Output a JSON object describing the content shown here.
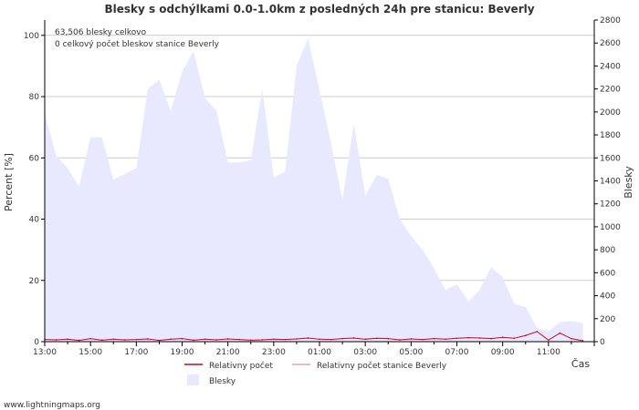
{
  "chart_data": {
    "type": "area",
    "title": "Blesky s odchýlkami 0.0-1.0km z posledných 24h pre stanicu: Beverly",
    "ylabel_left": "Percent   [%]",
    "ylabel_right": "Blesky",
    "xlabel": "Čas",
    "left_axis": {
      "min": 0,
      "max": 105,
      "ticks": [
        "0",
        "20",
        "40",
        "60",
        "80",
        "100"
      ]
    },
    "right_axis": {
      "min": 0,
      "max": 2800,
      "ticks": [
        "0",
        "200",
        "400",
        "600",
        "800",
        "1000",
        "1200",
        "1400",
        "1600",
        "1800",
        "2000",
        "2200",
        "2400",
        "2600",
        "2800"
      ]
    },
    "x_ticks": [
      "13:00",
      "15:00",
      "17:00",
      "19:00",
      "21:00",
      "23:00",
      "01:00",
      "03:00",
      "05:00",
      "07:00",
      "09:00",
      "11:00"
    ],
    "annotation_total": "63,506 blesky celkovo",
    "annotation_station": "0 celkový počet bleskov stanice Beverly",
    "legend": {
      "relative": "Relativny počet",
      "relative_station": "Relativny počet stanice Beverly",
      "strikes": "Blesky"
    },
    "colors": {
      "area_fill": "#e8e8ff",
      "relative_line": "#d0021b",
      "station_line": "#f4a0a8",
      "grid": "#cccccc",
      "axis": "#000000"
    },
    "strikes_series": [
      {
        "hour": 0.0,
        "value": 1990
      },
      {
        "hour": 0.5,
        "value": 1620
      },
      {
        "hour": 1.0,
        "value": 1510
      },
      {
        "hour": 1.5,
        "value": 1350
      },
      {
        "hour": 2.0,
        "value": 1780
      },
      {
        "hour": 2.5,
        "value": 1780
      },
      {
        "hour": 3.0,
        "value": 1410
      },
      {
        "hour": 3.5,
        "value": 1460
      },
      {
        "hour": 4.0,
        "value": 1510
      },
      {
        "hour": 4.5,
        "value": 2200
      },
      {
        "hour": 5.0,
        "value": 2280
      },
      {
        "hour": 5.5,
        "value": 2010
      },
      {
        "hour": 6.0,
        "value": 2350
      },
      {
        "hour": 6.5,
        "value": 2530
      },
      {
        "hour": 7.0,
        "value": 2120
      },
      {
        "hour": 7.5,
        "value": 2010
      },
      {
        "hour": 8.0,
        "value": 1560
      },
      {
        "hour": 8.5,
        "value": 1560
      },
      {
        "hour": 9.0,
        "value": 1580
      },
      {
        "hour": 9.5,
        "value": 2200
      },
      {
        "hour": 10.0,
        "value": 1430
      },
      {
        "hour": 10.5,
        "value": 1480
      },
      {
        "hour": 11.0,
        "value": 2400
      },
      {
        "hour": 11.5,
        "value": 2640
      },
      {
        "hour": 12.0,
        "value": 2190
      },
      {
        "hour": 12.5,
        "value": 1730
      },
      {
        "hour": 13.0,
        "value": 1230
      },
      {
        "hour": 13.5,
        "value": 1900
      },
      {
        "hour": 14.0,
        "value": 1270
      },
      {
        "hour": 14.5,
        "value": 1450
      },
      {
        "hour": 15.0,
        "value": 1420
      },
      {
        "hour": 15.5,
        "value": 1070
      },
      {
        "hour": 16.0,
        "value": 920
      },
      {
        "hour": 16.5,
        "value": 800
      },
      {
        "hour": 17.0,
        "value": 640
      },
      {
        "hour": 17.5,
        "value": 450
      },
      {
        "hour": 18.0,
        "value": 500
      },
      {
        "hour": 18.5,
        "value": 350
      },
      {
        "hour": 19.0,
        "value": 450
      },
      {
        "hour": 19.5,
        "value": 650
      },
      {
        "hour": 20.0,
        "value": 560
      },
      {
        "hour": 20.5,
        "value": 330
      },
      {
        "hour": 21.0,
        "value": 300
      },
      {
        "hour": 21.5,
        "value": 120
      },
      {
        "hour": 22.0,
        "value": 90
      },
      {
        "hour": 22.5,
        "value": 170
      },
      {
        "hour": 23.0,
        "value": 180
      },
      {
        "hour": 23.5,
        "value": 160
      }
    ],
    "relative_series": [
      {
        "hour": 0.0,
        "value": 0.7
      },
      {
        "hour": 0.5,
        "value": 0.6
      },
      {
        "hour": 1.0,
        "value": 0.8
      },
      {
        "hour": 1.5,
        "value": 0.4
      },
      {
        "hour": 2.0,
        "value": 1.0
      },
      {
        "hour": 2.5,
        "value": 0.5
      },
      {
        "hour": 3.0,
        "value": 0.8
      },
      {
        "hour": 3.5,
        "value": 0.6
      },
      {
        "hour": 4.0,
        "value": 0.7
      },
      {
        "hour": 4.5,
        "value": 0.9
      },
      {
        "hour": 5.0,
        "value": 0.4
      },
      {
        "hour": 5.5,
        "value": 0.8
      },
      {
        "hour": 6.0,
        "value": 1.0
      },
      {
        "hour": 6.5,
        "value": 0.5
      },
      {
        "hour": 7.0,
        "value": 0.8
      },
      {
        "hour": 7.5,
        "value": 0.6
      },
      {
        "hour": 8.0,
        "value": 0.9
      },
      {
        "hour": 8.5,
        "value": 0.7
      },
      {
        "hour": 9.0,
        "value": 0.5
      },
      {
        "hour": 9.5,
        "value": 0.6
      },
      {
        "hour": 10.0,
        "value": 0.8
      },
      {
        "hour": 10.5,
        "value": 0.7
      },
      {
        "hour": 11.0,
        "value": 0.9
      },
      {
        "hour": 11.5,
        "value": 1.2
      },
      {
        "hour": 12.0,
        "value": 0.8
      },
      {
        "hour": 12.5,
        "value": 0.7
      },
      {
        "hour": 13.0,
        "value": 1.0
      },
      {
        "hour": 13.5,
        "value": 1.2
      },
      {
        "hour": 14.0,
        "value": 0.8
      },
      {
        "hour": 14.5,
        "value": 1.1
      },
      {
        "hour": 15.0,
        "value": 1.0
      },
      {
        "hour": 15.5,
        "value": 0.6
      },
      {
        "hour": 16.0,
        "value": 0.9
      },
      {
        "hour": 16.5,
        "value": 0.7
      },
      {
        "hour": 17.0,
        "value": 1.0
      },
      {
        "hour": 17.5,
        "value": 0.8
      },
      {
        "hour": 18.0,
        "value": 1.1
      },
      {
        "hour": 18.5,
        "value": 1.3
      },
      {
        "hour": 19.0,
        "value": 1.2
      },
      {
        "hour": 19.5,
        "value": 1.0
      },
      {
        "hour": 20.0,
        "value": 1.4
      },
      {
        "hour": 20.5,
        "value": 1.1
      },
      {
        "hour": 21.0,
        "value": 2.0
      },
      {
        "hour": 21.5,
        "value": 3.3
      },
      {
        "hour": 22.0,
        "value": 0.5
      },
      {
        "hour": 22.5,
        "value": 2.8
      },
      {
        "hour": 23.0,
        "value": 1.0
      },
      {
        "hour": 23.5,
        "value": 0.3
      }
    ]
  },
  "footer_credit": "www.lightningmaps.org"
}
